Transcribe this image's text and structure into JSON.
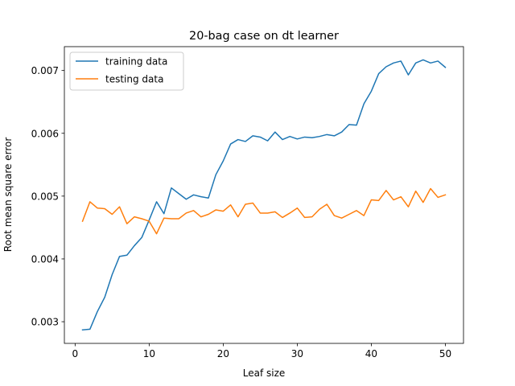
{
  "chart_data": {
    "type": "line",
    "title": "20-bag case on dt learner",
    "xlabel": "Leaf size",
    "ylabel": "Root mean square error",
    "xlim": [
      -1.45,
      52.45
    ],
    "ylim": [
      0.002655,
      0.00738
    ],
    "xticks": [
      0,
      10,
      20,
      30,
      40,
      50
    ],
    "xtick_labels": [
      "0",
      "10",
      "20",
      "30",
      "40",
      "50"
    ],
    "yticks": [
      0.003,
      0.004,
      0.005,
      0.006,
      0.007
    ],
    "ytick_labels": [
      "0.003",
      "0.004",
      "0.005",
      "0.006",
      "0.007"
    ],
    "grid": false,
    "legend_position": "top-left",
    "x": [
      1,
      2,
      3,
      4,
      5,
      6,
      7,
      8,
      9,
      10,
      11,
      12,
      13,
      14,
      15,
      16,
      17,
      18,
      19,
      20,
      21,
      22,
      23,
      24,
      25,
      26,
      27,
      28,
      29,
      30,
      31,
      32,
      33,
      34,
      35,
      36,
      37,
      38,
      39,
      40,
      41,
      42,
      43,
      44,
      45,
      46,
      47,
      48,
      49,
      50
    ],
    "series": [
      {
        "name": "training data",
        "color": "#1f77b4",
        "values": [
          0.00287,
          0.00288,
          0.00316,
          0.00339,
          0.00375,
          0.00404,
          0.00406,
          0.00421,
          0.00434,
          0.00462,
          0.00491,
          0.00472,
          0.00513,
          0.00504,
          0.00495,
          0.00502,
          0.00499,
          0.00497,
          0.00534,
          0.00556,
          0.00583,
          0.0059,
          0.00587,
          0.00596,
          0.00594,
          0.00588,
          0.00602,
          0.0059,
          0.00595,
          0.00591,
          0.00594,
          0.00593,
          0.00595,
          0.00598,
          0.00596,
          0.00602,
          0.00614,
          0.00613,
          0.00647,
          0.00667,
          0.00695,
          0.00706,
          0.00712,
          0.00715,
          0.00693,
          0.00712,
          0.00717,
          0.00712,
          0.00715,
          0.00705
        ]
      },
      {
        "name": "testing data",
        "color": "#ff7f0e",
        "values": [
          0.0046,
          0.00491,
          0.00481,
          0.0048,
          0.00471,
          0.00483,
          0.00456,
          0.00467,
          0.00464,
          0.0046,
          0.0044,
          0.00465,
          0.00464,
          0.00464,
          0.00473,
          0.00477,
          0.00467,
          0.00471,
          0.00478,
          0.00476,
          0.00486,
          0.00467,
          0.00487,
          0.00489,
          0.00473,
          0.00473,
          0.00475,
          0.00466,
          0.00473,
          0.00481,
          0.00466,
          0.00467,
          0.00479,
          0.00487,
          0.00469,
          0.00465,
          0.00471,
          0.00477,
          0.00469,
          0.00494,
          0.00493,
          0.00509,
          0.00494,
          0.00499,
          0.00483,
          0.00508,
          0.0049,
          0.00512,
          0.00498,
          0.00502
        ]
      }
    ]
  }
}
